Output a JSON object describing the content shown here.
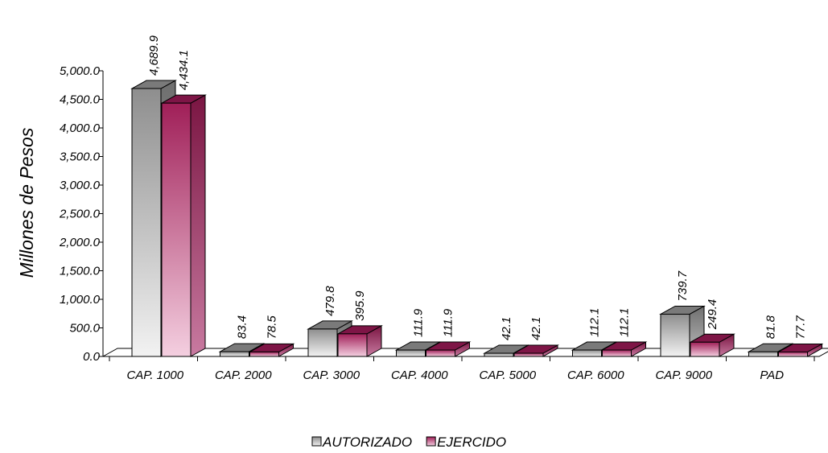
{
  "chart_data": {
    "type": "bar",
    "ylabel": "Millones de Pesos",
    "categories": [
      "CAP. 1000",
      "CAP. 2000",
      "CAP. 3000",
      "CAP. 4000",
      "CAP. 5000",
      "CAP. 6000",
      "CAP. 9000",
      "PAD"
    ],
    "series": [
      {
        "name": "AUTORIZADO",
        "values": [
          4689.9,
          83.4,
          479.8,
          111.9,
          42.1,
          112.1,
          739.7,
          81.8
        ],
        "labels": [
          "4,689.9",
          "83.4",
          "479.8",
          "111.9",
          "42.1",
          "112.1",
          "739.7",
          "81.8"
        ]
      },
      {
        "name": "EJERCIDO",
        "values": [
          4434.1,
          78.5,
          395.9,
          111.9,
          42.1,
          112.1,
          249.4,
          77.7
        ],
        "labels": [
          "4,434.1",
          "78.5",
          "395.9",
          "111.9",
          "42.1",
          "112.1",
          "249.4",
          "77.7"
        ]
      }
    ],
    "ylim": [
      0,
      5000
    ],
    "yticks": [
      "0.0",
      "500.0",
      "1,000.0",
      "1,500.0",
      "2,000.0",
      "2,500.0",
      "3,000.0",
      "3,500.0",
      "4,000.0",
      "4,500.0",
      "5,000.0"
    ],
    "legend_position": "bottom",
    "colors": {
      "AUTORIZADO": "#9a9a9a",
      "EJERCIDO": "#a8245e"
    }
  }
}
